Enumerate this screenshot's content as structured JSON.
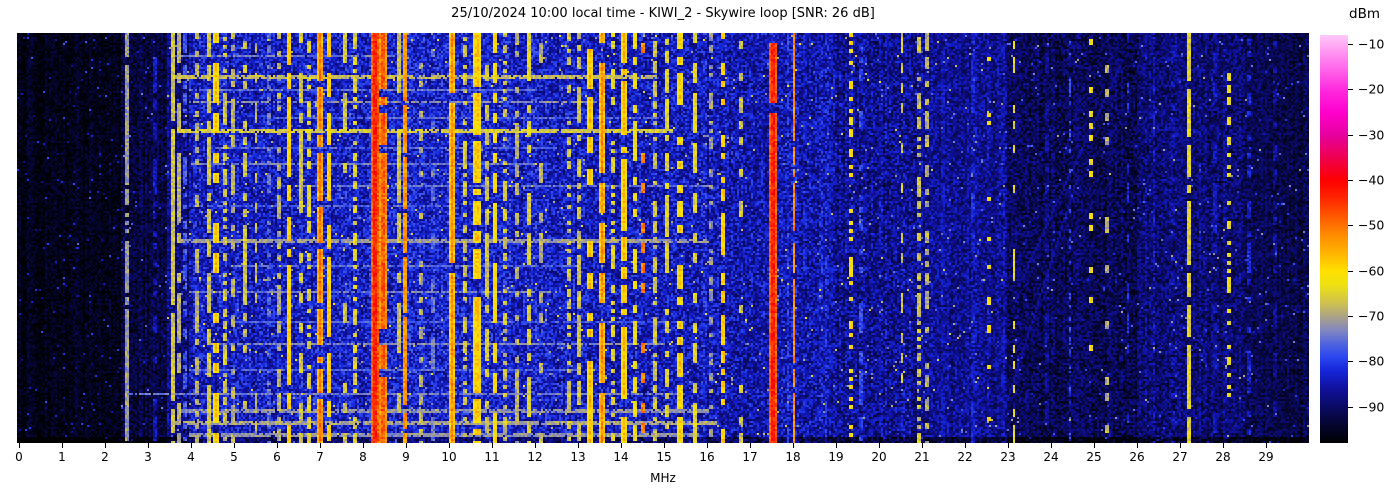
{
  "chart_data": {
    "type": "heatmap",
    "subtype": "radio-spectrogram-waterfall",
    "title": "25/10/2024 10:00 local time - KIWI_2 - Skywire loop [SNR: 26 dB]",
    "xlabel": "MHz",
    "x_range_mhz": [
      0,
      30
    ],
    "x_ticks": [
      0,
      1,
      2,
      3,
      4,
      5,
      6,
      7,
      8,
      9,
      10,
      11,
      12,
      13,
      14,
      15,
      16,
      17,
      18,
      19,
      20,
      21,
      22,
      23,
      24,
      25,
      26,
      27,
      28,
      29
    ],
    "time_axis": {
      "direction": "vertical",
      "labels_visible": false
    },
    "colorbar": {
      "label": "dBm",
      "range_dbm": [
        -98,
        -8
      ],
      "ticks_dbm": [
        -10,
        -20,
        -30,
        -40,
        -50,
        -60,
        -70,
        -80,
        -90
      ],
      "tick_labels": [
        "−10",
        "−20",
        "−30",
        "−40",
        "−50",
        "−60",
        "−70",
        "−80",
        "−90"
      ],
      "stops": [
        [
          -98,
          "#000002"
        ],
        [
          -94,
          "#05052e"
        ],
        [
          -90,
          "#0a0a64"
        ],
        [
          -86,
          "#10109b"
        ],
        [
          -82,
          "#1525d8"
        ],
        [
          -79,
          "#2a46f0"
        ],
        [
          -76,
          "#5064e0"
        ],
        [
          -73,
          "#8288c0"
        ],
        [
          -70,
          "#aca387"
        ],
        [
          -67,
          "#cfc24f"
        ],
        [
          -63,
          "#efe212"
        ],
        [
          -60,
          "#ffe000"
        ],
        [
          -56,
          "#ffb400"
        ],
        [
          -52,
          "#ff8c00"
        ],
        [
          -48,
          "#ff5a00"
        ],
        [
          -44,
          "#ff2800"
        ],
        [
          -40,
          "#ff0000"
        ],
        [
          -35,
          "#ef004e"
        ],
        [
          -30,
          "#e6009e"
        ],
        [
          -25,
          "#ff00cd"
        ],
        [
          -20,
          "#ff2ade"
        ],
        [
          -15,
          "#ff6ceb"
        ],
        [
          -10,
          "#ffabf5"
        ],
        [
          -8,
          "#ffc9fa"
        ]
      ]
    },
    "noise_floor_segments": [
      [
        0.0,
        2.4,
        -96,
        3
      ],
      [
        2.4,
        3.5,
        -93,
        4
      ],
      [
        3.5,
        4.0,
        -88,
        5
      ],
      [
        4.0,
        6.5,
        -84,
        6
      ],
      [
        6.5,
        9.0,
        -83,
        6
      ],
      [
        9.0,
        12.3,
        -83,
        6
      ],
      [
        12.3,
        16.0,
        -84,
        6
      ],
      [
        16.0,
        19.0,
        -85,
        6
      ],
      [
        19.0,
        21.0,
        -87,
        6
      ],
      [
        21.0,
        23.0,
        -87,
        5
      ],
      [
        23.0,
        26.0,
        -91,
        5
      ],
      [
        26.0,
        28.5,
        -89,
        5
      ],
      [
        28.5,
        30.0,
        -92,
        4
      ]
    ],
    "bands": [
      [
        2.55,
        0.05,
        -66,
        0.8
      ],
      [
        3.2,
        0.05,
        -80,
        0.5
      ],
      [
        3.62,
        0.06,
        -62,
        0.9
      ],
      [
        3.75,
        0.05,
        -64,
        0.7
      ],
      [
        3.9,
        0.08,
        -73,
        0.6
      ],
      [
        4.2,
        0.05,
        -64,
        0.55
      ],
      [
        4.45,
        0.05,
        -62,
        0.7
      ],
      [
        4.62,
        0.06,
        -57,
        0.5
      ],
      [
        4.85,
        0.05,
        -62,
        0.6
      ],
      [
        5.0,
        0.04,
        -64,
        0.5
      ],
      [
        5.3,
        0.05,
        -62,
        0.45
      ],
      [
        5.55,
        0.04,
        -68,
        0.4
      ],
      [
        5.85,
        0.04,
        -70,
        0.4
      ],
      [
        6.1,
        0.04,
        -64,
        0.5
      ],
      [
        6.3,
        0.06,
        -54,
        0.75
      ],
      [
        6.6,
        0.05,
        -62,
        0.5
      ],
      [
        6.8,
        0.05,
        -60,
        0.55
      ],
      [
        7.05,
        0.1,
        -50,
        0.85
      ],
      [
        7.25,
        0.08,
        -54,
        0.7
      ],
      [
        7.6,
        0.04,
        -62,
        0.4
      ],
      [
        7.85,
        0.05,
        -60,
        0.5
      ],
      [
        8.33,
        0.14,
        -43,
        0.97
      ],
      [
        8.5,
        0.12,
        -48,
        0.9
      ],
      [
        8.85,
        0.05,
        -62,
        0.5
      ],
      [
        9.02,
        0.05,
        -48,
        0.9
      ],
      [
        9.4,
        0.04,
        -64,
        0.4
      ],
      [
        9.65,
        0.04,
        -70,
        0.35
      ],
      [
        10.1,
        0.12,
        -52,
        0.9
      ],
      [
        10.4,
        0.05,
        -62,
        0.5
      ],
      [
        10.68,
        0.1,
        -58,
        0.75
      ],
      [
        10.9,
        0.05,
        -62,
        0.5
      ],
      [
        11.1,
        0.07,
        -56,
        0.8
      ],
      [
        11.35,
        0.05,
        -62,
        0.5
      ],
      [
        11.62,
        0.05,
        -64,
        0.45
      ],
      [
        11.9,
        0.06,
        -60,
        0.6
      ],
      [
        12.15,
        0.05,
        -64,
        0.4
      ],
      [
        12.8,
        0.05,
        -62,
        0.5
      ],
      [
        13.05,
        0.05,
        -62,
        0.55
      ],
      [
        13.3,
        0.06,
        -56,
        0.6
      ],
      [
        13.6,
        0.08,
        -52,
        0.8
      ],
      [
        13.85,
        0.05,
        -60,
        0.5
      ],
      [
        14.1,
        0.12,
        -56,
        0.85
      ],
      [
        14.35,
        0.06,
        -58,
        0.6
      ],
      [
        14.55,
        0.04,
        -46,
        0.25
      ],
      [
        14.8,
        0.05,
        -62,
        0.5
      ],
      [
        15.1,
        0.05,
        -60,
        0.6
      ],
      [
        15.4,
        0.09,
        -58,
        0.7
      ],
      [
        15.75,
        0.05,
        -60,
        0.5
      ],
      [
        16.1,
        0.04,
        -66,
        0.35
      ],
      [
        16.4,
        0.05,
        -54,
        0.45
      ],
      [
        16.8,
        0.04,
        -62,
        0.35
      ],
      [
        17.55,
        0.12,
        -43,
        0.98
      ],
      [
        17.9,
        0.04,
        -80,
        0.5
      ],
      [
        18.05,
        0.03,
        -52,
        0.8
      ],
      [
        18.3,
        0.04,
        -78,
        0.4
      ],
      [
        18.9,
        0.04,
        -80,
        0.5
      ],
      [
        19.35,
        0.04,
        -56,
        0.4
      ],
      [
        19.6,
        0.04,
        -74,
        0.5
      ],
      [
        20.0,
        0.04,
        -82,
        0.4
      ],
      [
        20.55,
        0.04,
        -66,
        0.3
      ],
      [
        20.95,
        0.04,
        -62,
        0.45
      ],
      [
        21.15,
        0.04,
        -64,
        0.4
      ],
      [
        21.5,
        0.04,
        -80,
        0.5
      ],
      [
        22.2,
        0.04,
        -78,
        0.45
      ],
      [
        22.55,
        0.05,
        -56,
        0.15
      ],
      [
        22.9,
        0.04,
        -80,
        0.4
      ],
      [
        23.15,
        0.04,
        -64,
        0.3
      ],
      [
        23.9,
        0.04,
        -82,
        0.4
      ],
      [
        24.45,
        0.04,
        -80,
        0.35
      ],
      [
        24.95,
        0.05,
        -58,
        0.2
      ],
      [
        25.3,
        0.04,
        -64,
        0.25
      ],
      [
        25.8,
        0.04,
        -82,
        0.4
      ],
      [
        26.4,
        0.04,
        -84,
        0.35
      ],
      [
        26.85,
        0.04,
        -80,
        0.4
      ],
      [
        27.2,
        0.06,
        -60,
        0.85
      ],
      [
        27.8,
        0.04,
        -80,
        0.45
      ],
      [
        28.15,
        0.05,
        -58,
        0.25
      ],
      [
        28.6,
        0.04,
        -78,
        0.4
      ],
      [
        29.2,
        0.04,
        -82,
        0.45
      ]
    ],
    "streaks": [
      [
        0.055,
        3.6,
        9.0,
        -74,
        1
      ],
      [
        0.1,
        3.6,
        14.8,
        -68,
        2
      ],
      [
        0.135,
        4.0,
        12.0,
        -75,
        1
      ],
      [
        0.165,
        4.0,
        13.5,
        -72,
        1
      ],
      [
        0.205,
        6.0,
        15.0,
        -76,
        1
      ],
      [
        0.235,
        3.6,
        15.2,
        -66,
        2
      ],
      [
        0.28,
        4.5,
        12.5,
        -76,
        1
      ],
      [
        0.315,
        4.0,
        12.0,
        -74,
        1
      ],
      [
        0.37,
        6.5,
        16.0,
        -75,
        1
      ],
      [
        0.42,
        4.0,
        10.0,
        -77,
        1
      ],
      [
        0.5,
        3.8,
        16.0,
        -71,
        2
      ],
      [
        0.565,
        5.0,
        13.0,
        -76,
        1
      ],
      [
        0.63,
        4.0,
        12.5,
        -74,
        1
      ],
      [
        0.7,
        5.0,
        15.5,
        -77,
        1
      ],
      [
        0.755,
        4.5,
        15.0,
        -73,
        1
      ],
      [
        0.82,
        4.0,
        13.0,
        -76,
        1
      ],
      [
        0.88,
        2.6,
        15.5,
        -74,
        1
      ],
      [
        0.915,
        3.8,
        16.0,
        -72,
        2
      ],
      [
        0.945,
        3.6,
        16.2,
        -70,
        2
      ],
      [
        0.975,
        4.0,
        15.8,
        -72,
        2
      ]
    ],
    "chirps": [
      [
        0.08,
        25.6,
        0.6,
        23.3,
        -86
      ],
      [
        0.35,
        24.6,
        0.95,
        22.8,
        -86
      ],
      [
        0.15,
        21.4,
        0.85,
        20.4,
        -87
      ]
    ]
  }
}
